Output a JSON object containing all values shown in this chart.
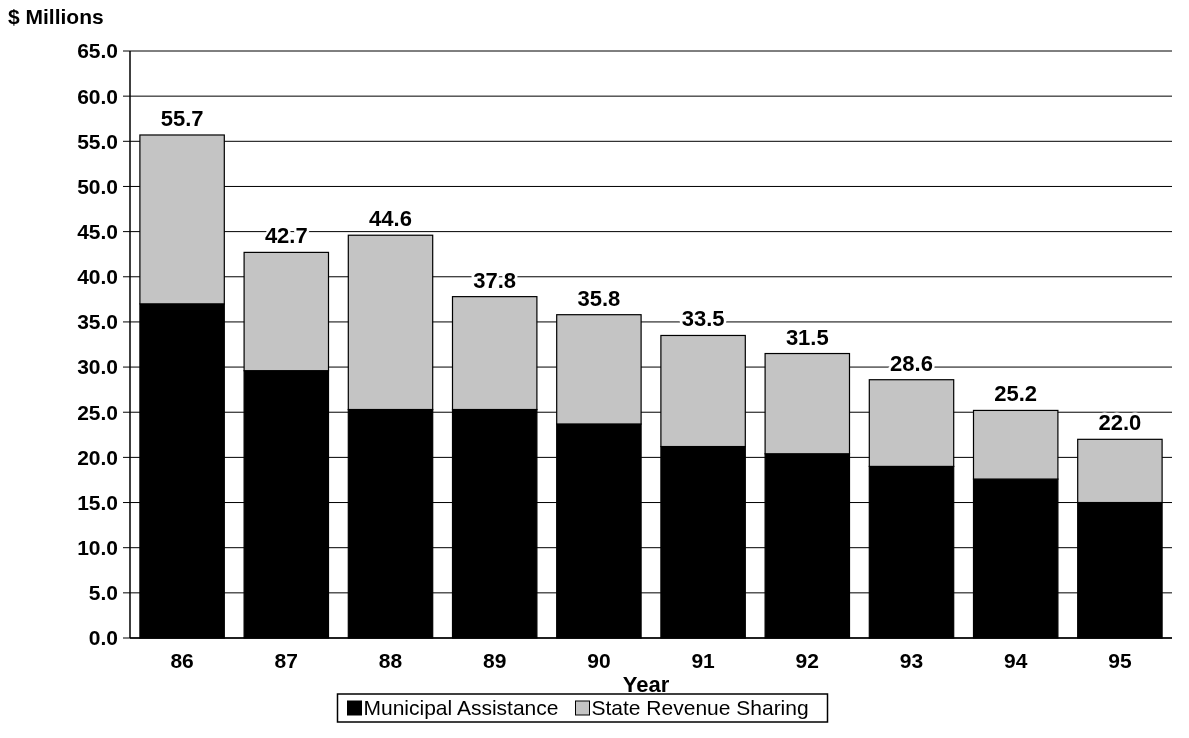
{
  "chart_data": {
    "type": "bar",
    "stacked": true,
    "ylabel": "$ Millions",
    "xlabel": "Year",
    "categories": [
      "86",
      "87",
      "88",
      "89",
      "90",
      "91",
      "92",
      "93",
      "94",
      "95"
    ],
    "series": [
      {
        "name": "Municipal Assistance",
        "color": "#000000",
        "values": [
          37.0,
          29.6,
          25.3,
          25.3,
          23.7,
          21.2,
          20.4,
          19.0,
          17.6,
          15.0
        ]
      },
      {
        "name": "State Revenue Sharing",
        "color": "#c4c4c4",
        "values": [
          18.7,
          13.1,
          19.3,
          12.5,
          12.1,
          12.3,
          11.1,
          9.6,
          7.6,
          7.0
        ]
      }
    ],
    "totals": [
      "55.7",
      "42.7",
      "44.6",
      "37.8",
      "35.8",
      "33.5",
      "31.5",
      "28.6",
      "25.2",
      "22.0"
    ],
    "ylim": [
      0,
      65
    ],
    "yticks": [
      {
        "value": 0,
        "label": "0.0"
      },
      {
        "value": 5,
        "label": "5.0"
      },
      {
        "value": 10,
        "label": "10.0"
      },
      {
        "value": 15,
        "label": "15.0"
      },
      {
        "value": 20,
        "label": "20.0"
      },
      {
        "value": 25,
        "label": "25.0"
      },
      {
        "value": 30,
        "label": "30.0"
      },
      {
        "value": 35,
        "label": "35.0"
      },
      {
        "value": 40,
        "label": "40.0"
      },
      {
        "value": 45,
        "label": "45.0"
      },
      {
        "value": 50,
        "label": "50.0"
      },
      {
        "value": 55,
        "label": "55.0"
      },
      {
        "value": 60,
        "label": "60.0"
      },
      {
        "value": 65,
        "label": "65.0"
      }
    ],
    "grid": "y",
    "legend": "bottom"
  }
}
